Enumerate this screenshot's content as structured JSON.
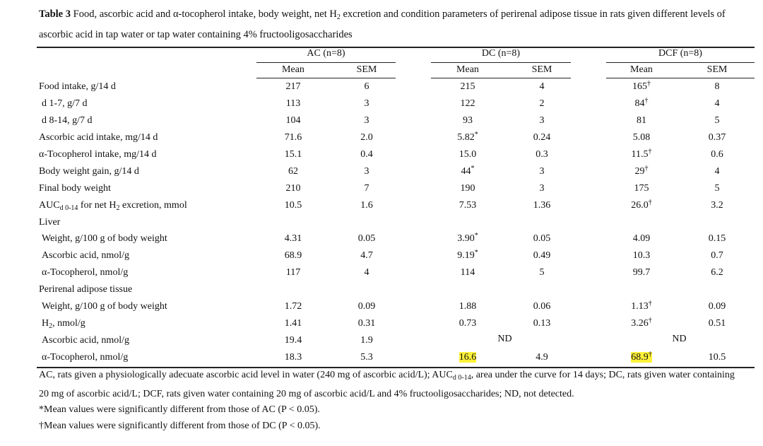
{
  "title": {
    "label": "Table 3",
    "segments": [
      {
        "text": " Food, ascorbic acid and α-tocopherol intake, body weight, net H"
      },
      {
        "sub": "2"
      },
      {
        "text": " excretion and condition parameters of perirenal adipose tissue in rats given different levels of ascorbic acid in tap water or tap water containing 4% fructooligosaccharides"
      }
    ]
  },
  "table": {
    "groups": [
      "AC (n=8)",
      "DC (n=8)",
      "DCF (n=8)"
    ],
    "columns": [
      "Mean",
      "SEM",
      "Mean",
      "SEM",
      "Mean",
      "SEM"
    ],
    "rows": [
      {
        "label": [
          {
            "text": "Food intake, g/14 d"
          }
        ],
        "cells": [
          {
            "value": "217"
          },
          {
            "value": "6"
          },
          {
            "value": "215"
          },
          {
            "value": "4"
          },
          {
            "value": "165",
            "mark": "†"
          },
          {
            "value": "8"
          }
        ]
      },
      {
        "label": [
          {
            "text": "d 1-7, g/7 d"
          }
        ],
        "indent": true,
        "cells": [
          {
            "value": "113"
          },
          {
            "value": "3"
          },
          {
            "value": "122"
          },
          {
            "value": "2"
          },
          {
            "value": "84",
            "mark": "†"
          },
          {
            "value": "4"
          }
        ]
      },
      {
        "label": [
          {
            "text": "d 8-14, g/7 d"
          }
        ],
        "indent": true,
        "cells": [
          {
            "value": "104"
          },
          {
            "value": "3"
          },
          {
            "value": "93"
          },
          {
            "value": "3"
          },
          {
            "value": "81"
          },
          {
            "value": "5"
          }
        ]
      },
      {
        "label": [
          {
            "text": "Ascorbic acid intake, mg/14 d"
          }
        ],
        "cells": [
          {
            "value": "71.6"
          },
          {
            "value": "2.0"
          },
          {
            "value": "5.82",
            "mark": "*"
          },
          {
            "value": "0.24"
          },
          {
            "value": "5.08"
          },
          {
            "value": "0.37"
          }
        ]
      },
      {
        "label": [
          {
            "text": "α-Tocopherol intake, mg/14 d"
          }
        ],
        "cells": [
          {
            "value": "15.1"
          },
          {
            "value": "0.4"
          },
          {
            "value": "15.0"
          },
          {
            "value": "0.3"
          },
          {
            "value": "11.5",
            "mark": "†"
          },
          {
            "value": "0.6"
          }
        ]
      },
      {
        "label": [
          {
            "text": "Body weight gain, g/14 d"
          }
        ],
        "cells": [
          {
            "value": "62"
          },
          {
            "value": "3"
          },
          {
            "value": "44",
            "mark": "*"
          },
          {
            "value": "3"
          },
          {
            "value": "29",
            "mark": "†"
          },
          {
            "value": "4"
          }
        ]
      },
      {
        "label": [
          {
            "text": "Final body weight"
          }
        ],
        "cells": [
          {
            "value": "210"
          },
          {
            "value": "7"
          },
          {
            "value": "190"
          },
          {
            "value": "3"
          },
          {
            "value": "175"
          },
          {
            "value": "5"
          }
        ]
      },
      {
        "label": [
          {
            "text": "AUC"
          },
          {
            "sub": "d 0-14"
          },
          {
            "text": " for net H"
          },
          {
            "sub": "2"
          },
          {
            "text": " excretion, mmol"
          }
        ],
        "cells": [
          {
            "value": "10.5"
          },
          {
            "value": "1.6"
          },
          {
            "value": "7.53"
          },
          {
            "value": "1.36"
          },
          {
            "value": "26.0",
            "mark": "†"
          },
          {
            "value": "3.2"
          }
        ]
      },
      {
        "label": [
          {
            "text": "Liver"
          }
        ],
        "cells": []
      },
      {
        "label": [
          {
            "text": "Weight, g/100 g of body weight"
          }
        ],
        "indent": true,
        "cells": [
          {
            "value": "4.31"
          },
          {
            "value": "0.05"
          },
          {
            "value": "3.90",
            "mark": "*"
          },
          {
            "value": "0.05"
          },
          {
            "value": "4.09"
          },
          {
            "value": "0.15"
          }
        ]
      },
      {
        "label": [
          {
            "text": "Ascorbic acid, nmol/g"
          }
        ],
        "indent": true,
        "cells": [
          {
            "value": "68.9"
          },
          {
            "value": "4.7"
          },
          {
            "value": "9.19",
            "mark": "*"
          },
          {
            "value": "0.49"
          },
          {
            "value": "10.3"
          },
          {
            "value": "0.7"
          }
        ]
      },
      {
        "label": [
          {
            "text": "α-Tocopherol, nmol/g"
          }
        ],
        "indent": true,
        "cells": [
          {
            "value": "117"
          },
          {
            "value": "4"
          },
          {
            "value": "114"
          },
          {
            "value": "5"
          },
          {
            "value": "99.7"
          },
          {
            "value": "6.2"
          }
        ]
      },
      {
        "label": [
          {
            "text": "Perirenal adipose tissue"
          }
        ],
        "cells": []
      },
      {
        "label": [
          {
            "text": "Weight, g/100 g of body weight"
          }
        ],
        "indent": true,
        "cells": [
          {
            "value": "1.72"
          },
          {
            "value": "0.09"
          },
          {
            "value": "1.88"
          },
          {
            "value": "0.06"
          },
          {
            "value": "1.13",
            "mark": "†"
          },
          {
            "value": "0.09"
          }
        ]
      },
      {
        "label": [
          {
            "text": "H"
          },
          {
            "sub": "2"
          },
          {
            "text": ", nmol/g"
          }
        ],
        "indent": true,
        "cells": [
          {
            "value": "1.41"
          },
          {
            "value": "0.31"
          },
          {
            "value": "0.73"
          },
          {
            "value": "0.13"
          },
          {
            "value": "3.26",
            "mark": "†"
          },
          {
            "value": "0.51"
          }
        ]
      },
      {
        "label": [
          {
            "text": "Ascorbic acid, nmol/g"
          }
        ],
        "indent": true,
        "cells": [
          {
            "value": "19.4"
          },
          {
            "value": "1.9"
          },
          {
            "value": "ND",
            "span": 2
          },
          {
            "value": "ND",
            "span": 2
          }
        ]
      },
      {
        "label": [
          {
            "text": "α-Tocopherol, nmol/g"
          }
        ],
        "indent": true,
        "cells": [
          {
            "value": "18.3"
          },
          {
            "value": "5.3"
          },
          {
            "value": "16.6",
            "highlight": true
          },
          {
            "value": "4.9"
          },
          {
            "value": "68.9",
            "mark": "†",
            "highlight": true
          },
          {
            "value": "10.5"
          }
        ]
      }
    ]
  },
  "footnotes": [
    [
      {
        "text": "AC, rats given a physiologically adecuate ascorbic acid level in water (240 mg of ascorbic acid/L); AUC"
      },
      {
        "sub": "d 0-14"
      },
      {
        "text": ", area under the curve for 14 days; DC, rats given water containing 20 mg of ascorbic acid/L; DCF, rats given water containing 20 mg of ascorbic acid/L and 4% fructooligosaccharides; ND, not detected."
      }
    ],
    [
      {
        "text": "*Mean values were significantly different from those of AC (P < 0.05)."
      }
    ],
    [
      {
        "text": "†Mean values were significantly different from those of DC (P < 0.05)."
      }
    ]
  ]
}
